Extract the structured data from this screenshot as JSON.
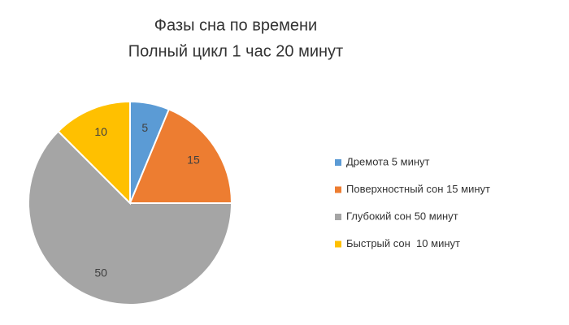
{
  "chart_data": {
    "type": "pie",
    "title": "Фазы сна по времени",
    "subtitle": "Полный цикл 1 час 20 минут",
    "categories": [
      "Дремота 5 минут",
      "Поверхностный сон 15 минут",
      "Глубокий сон 50 минут",
      "Быстрый сон  10 минут"
    ],
    "values": [
      5,
      15,
      50,
      10
    ],
    "colors": [
      "#5b9bd5",
      "#ed7d31",
      "#a5a5a5",
      "#ffc000"
    ],
    "legend": "right"
  }
}
